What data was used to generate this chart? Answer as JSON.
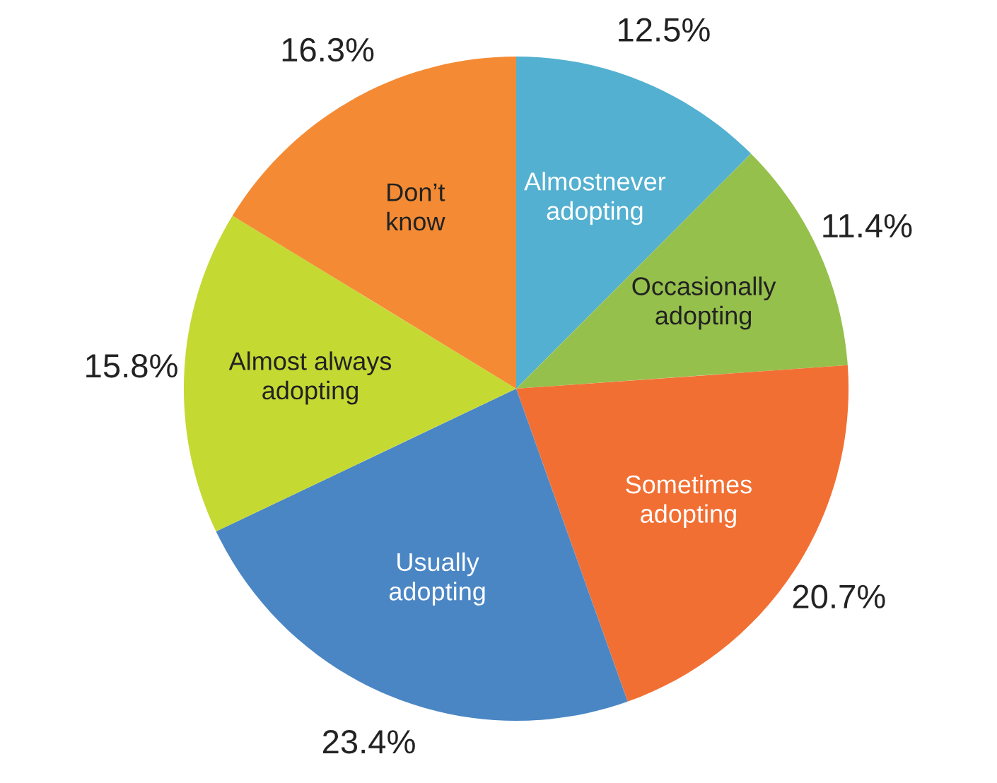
{
  "chart_data": {
    "type": "pie",
    "categories": [
      "Almostnever adopting",
      "Occasionally adopting",
      "Sometimes adopting",
      "Usually adopting",
      "Almost always adopting",
      "Don’t know"
    ],
    "values": [
      12.5,
      11.4,
      20.7,
      23.4,
      15.8,
      16.3
    ],
    "colors": [
      "#53b0d0",
      "#95c04c",
      "#f26f33",
      "#4a86c4",
      "#c4d932",
      "#f48b34"
    ],
    "value_labels": [
      "12.5%",
      "11.4%",
      "20.7%",
      "23.4%",
      "15.8%",
      "16.3%"
    ],
    "legend": false
  }
}
